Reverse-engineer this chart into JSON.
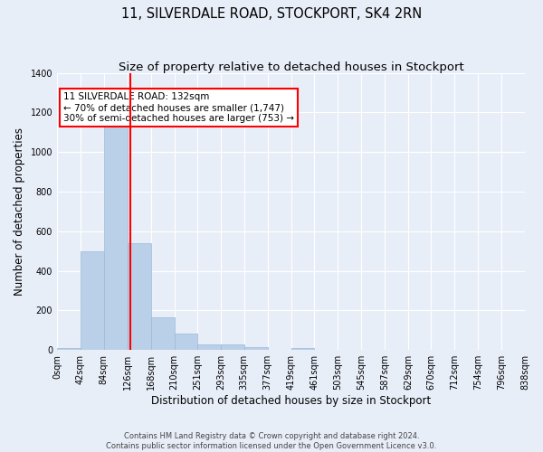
{
  "title": "11, SILVERDALE ROAD, STOCKPORT, SK4 2RN",
  "subtitle": "Size of property relative to detached houses in Stockport",
  "xlabel": "Distribution of detached houses by size in Stockport",
  "ylabel": "Number of detached properties",
  "bin_edges": [
    0,
    42,
    84,
    126,
    168,
    210,
    251,
    293,
    335,
    377,
    419,
    461,
    503,
    545,
    587,
    629,
    670,
    712,
    754,
    796,
    838
  ],
  "bar_heights": [
    10,
    500,
    1200,
    540,
    165,
    85,
    30,
    28,
    15,
    0,
    10,
    0,
    0,
    0,
    0,
    0,
    0,
    0,
    0,
    0
  ],
  "bar_color": "#bad0e8",
  "bar_edgecolor": "#9ab8d8",
  "bg_color": "#e8eef8",
  "grid_color": "#ffffff",
  "vline_x": 132,
  "vline_color": "red",
  "annotation_text": "11 SILVERDALE ROAD: 132sqm\n← 70% of detached houses are smaller (1,747)\n30% of semi-detached houses are larger (753) →",
  "annotation_box_color": "white",
  "annotation_box_edgecolor": "red",
  "ylim": [
    0,
    1400
  ],
  "yticks": [
    0,
    200,
    400,
    600,
    800,
    1000,
    1200,
    1400
  ],
  "footnote": "Contains HM Land Registry data © Crown copyright and database right 2024.\nContains public sector information licensed under the Open Government Licence v3.0.",
  "title_fontsize": 10.5,
  "subtitle_fontsize": 9.5,
  "tick_fontsize": 7,
  "ylabel_fontsize": 8.5,
  "xlabel_fontsize": 8.5,
  "annotation_fontsize": 7.5,
  "footnote_fontsize": 6
}
